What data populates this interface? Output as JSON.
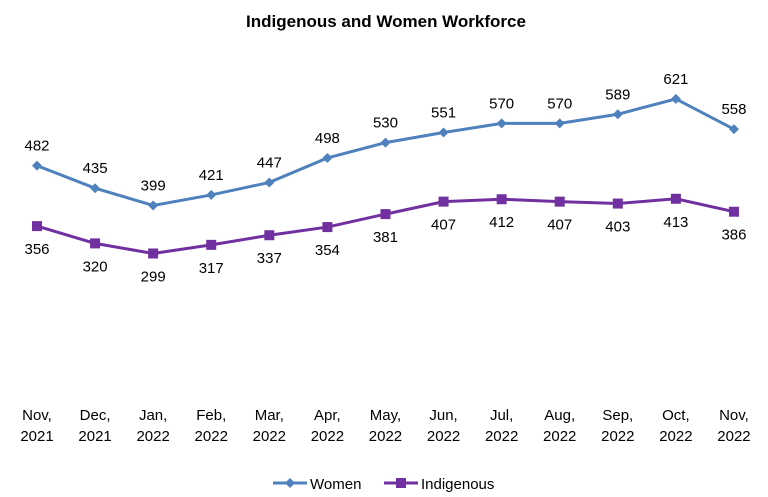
{
  "chart_data": {
    "type": "line",
    "title": "Indigenous and Women Workforce",
    "xlabel": "",
    "ylabel": "",
    "ylim": [
      0,
      700
    ],
    "grid": false,
    "legend_placement": "bottom",
    "categories": [
      [
        "Nov,",
        "2021"
      ],
      [
        "Dec,",
        "2021"
      ],
      [
        "Jan,",
        "2022"
      ],
      [
        "Feb,",
        "2022"
      ],
      [
        "Mar,",
        "2022"
      ],
      [
        "Apr,",
        "2022"
      ],
      [
        "May,",
        "2022"
      ],
      [
        "Jun,",
        "2022"
      ],
      [
        "Jul,",
        "2022"
      ],
      [
        "Aug,",
        "2022"
      ],
      [
        "Sep,",
        "2022"
      ],
      [
        "Oct,",
        "2022"
      ],
      [
        "Nov,",
        "2022"
      ]
    ],
    "series": [
      {
        "name": "Women",
        "color": "#4f81bd",
        "marker": "diamond",
        "label_position": "above",
        "values": [
          482,
          435,
          399,
          421,
          447,
          498,
          530,
          551,
          570,
          570,
          589,
          621,
          558
        ]
      },
      {
        "name": "Indigenous",
        "color": "#7030a0",
        "marker": "square",
        "label_position": "below",
        "values": [
          356,
          320,
          299,
          317,
          337,
          354,
          381,
          407,
          412,
          407,
          403,
          413,
          386
        ]
      }
    ]
  }
}
